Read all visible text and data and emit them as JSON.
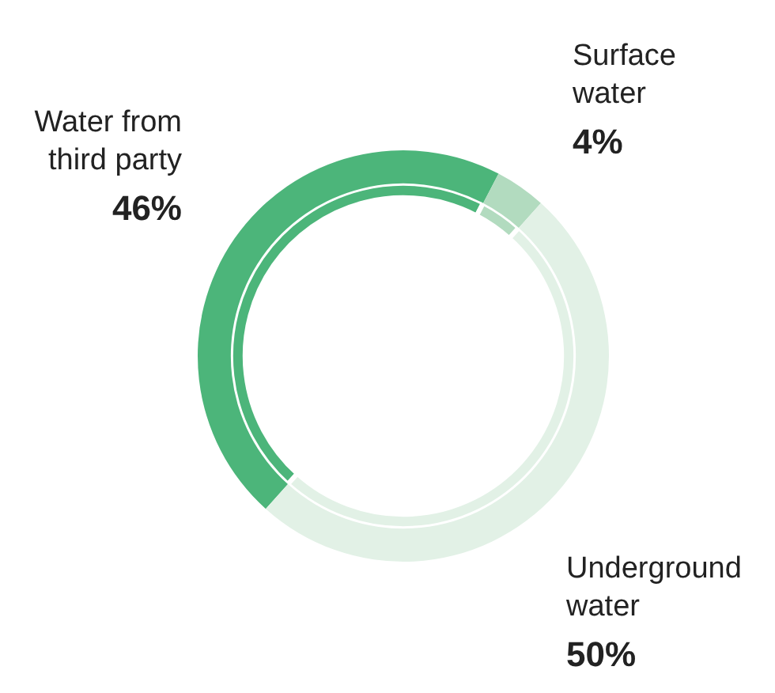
{
  "chart_data": {
    "type": "donut",
    "categories": [
      "Water from third party",
      "Surface water",
      "Underground water"
    ],
    "colors": [
      "#4cb57a",
      "#b2dbbf",
      "#e2f1e6"
    ],
    "series": [
      {
        "values": [
          46,
          4,
          50
        ]
      },
      {
        "values": [
          46,
          4,
          50
        ]
      }
    ],
    "value_labels": [
      "46%",
      "4%",
      "50%"
    ]
  }
}
